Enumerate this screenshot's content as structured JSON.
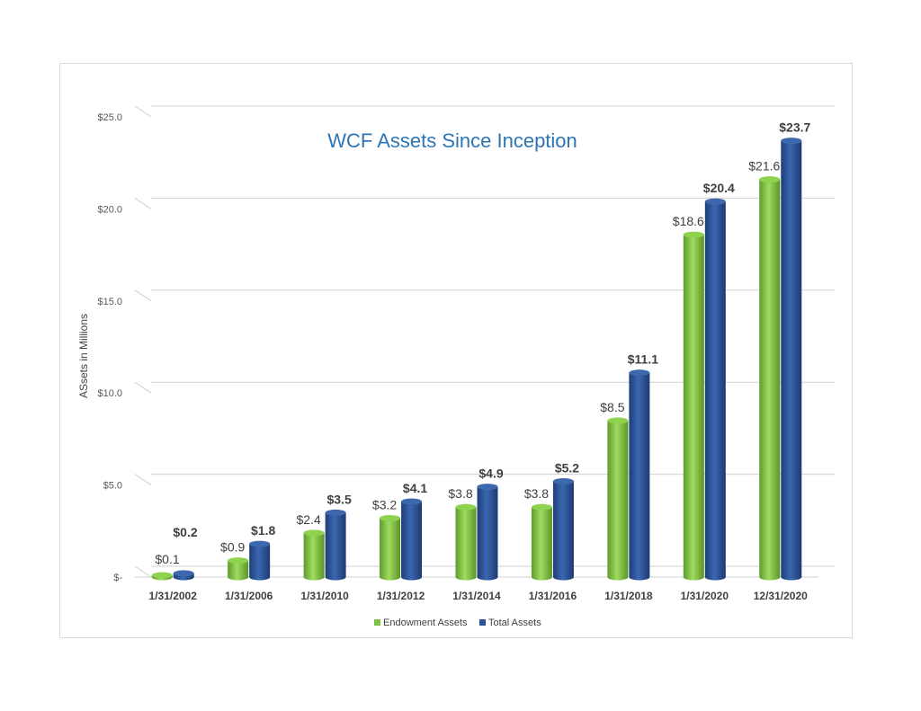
{
  "chart_data": {
    "type": "bar",
    "title": "WCF Assets Since Inception",
    "ylabel": "ASsets in Millions",
    "xlabel": "",
    "categories": [
      "1/31/2002",
      "1/31/2006",
      "1/31/2010",
      "1/31/2012",
      "1/31/2014",
      "1/31/2016",
      "1/31/2018",
      "1/31/2020",
      "12/31/2020"
    ],
    "series": [
      {
        "name": "Endowment Assets",
        "color": "#7dc242",
        "values": [
          0.1,
          0.9,
          2.4,
          3.2,
          3.8,
          3.8,
          8.5,
          18.6,
          21.6
        ],
        "labels": [
          "$0.1",
          "$0.9",
          "$2.4",
          "$3.2",
          "$3.8",
          "$3.8",
          "$8.5",
          "$18.6",
          "$21.6"
        ]
      },
      {
        "name": "Total Assets",
        "color": "#2c5494",
        "values": [
          0.2,
          1.8,
          3.5,
          4.1,
          4.9,
          5.2,
          11.1,
          20.4,
          23.7
        ],
        "labels": [
          "$0.2",
          "$1.8",
          "$3.5",
          "$4.1",
          "$4.9",
          "$5.2",
          "$11.1",
          "$20.4",
          "$23.7"
        ]
      }
    ],
    "ylim": [
      0,
      25
    ],
    "yticks": [
      0,
      5,
      10,
      15,
      20,
      25
    ],
    "ytick_labels": [
      "$-",
      "$5.0",
      "$10.0",
      "$15.0",
      "$20.0",
      "$25.0"
    ],
    "grid": true,
    "legend_position": "bottom"
  }
}
